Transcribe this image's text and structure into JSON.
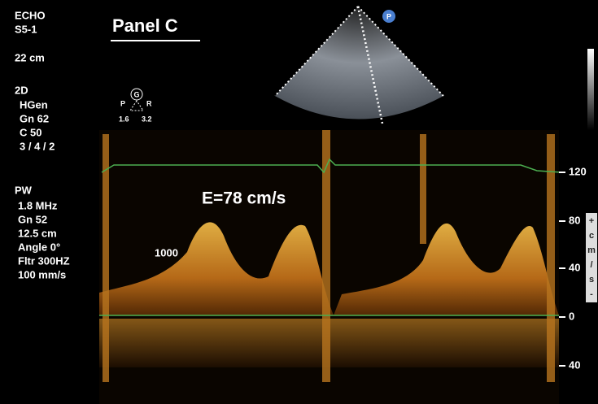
{
  "header": {
    "mode": "ECHO",
    "probe": "S5-1",
    "depth": "22 cm",
    "title": "Panel C"
  },
  "settings_2d": {
    "mode": "2D",
    "lines": [
      "HGen",
      "Gn 62",
      "C 50",
      "3 / 4 / 2"
    ]
  },
  "settings_pw": {
    "mode": "PW",
    "lines": [
      "1.8 MHz",
      "Gn 52",
      "12.5 cm",
      "Angle 0°",
      "Fltr 300HZ",
      "100 mm/s"
    ]
  },
  "marker": {
    "label": "G",
    "left": "P",
    "right": "R",
    "left_value": "1.6",
    "right_value": "3.2"
  },
  "probe_marker": "P",
  "annotation": "E=78 cm/s",
  "prf_label": "1000",
  "scale": {
    "ticks": [
      "120",
      "80",
      "40",
      "0",
      "40"
    ],
    "unit": [
      "+",
      "c",
      "m",
      "/",
      "s",
      "-"
    ]
  }
}
